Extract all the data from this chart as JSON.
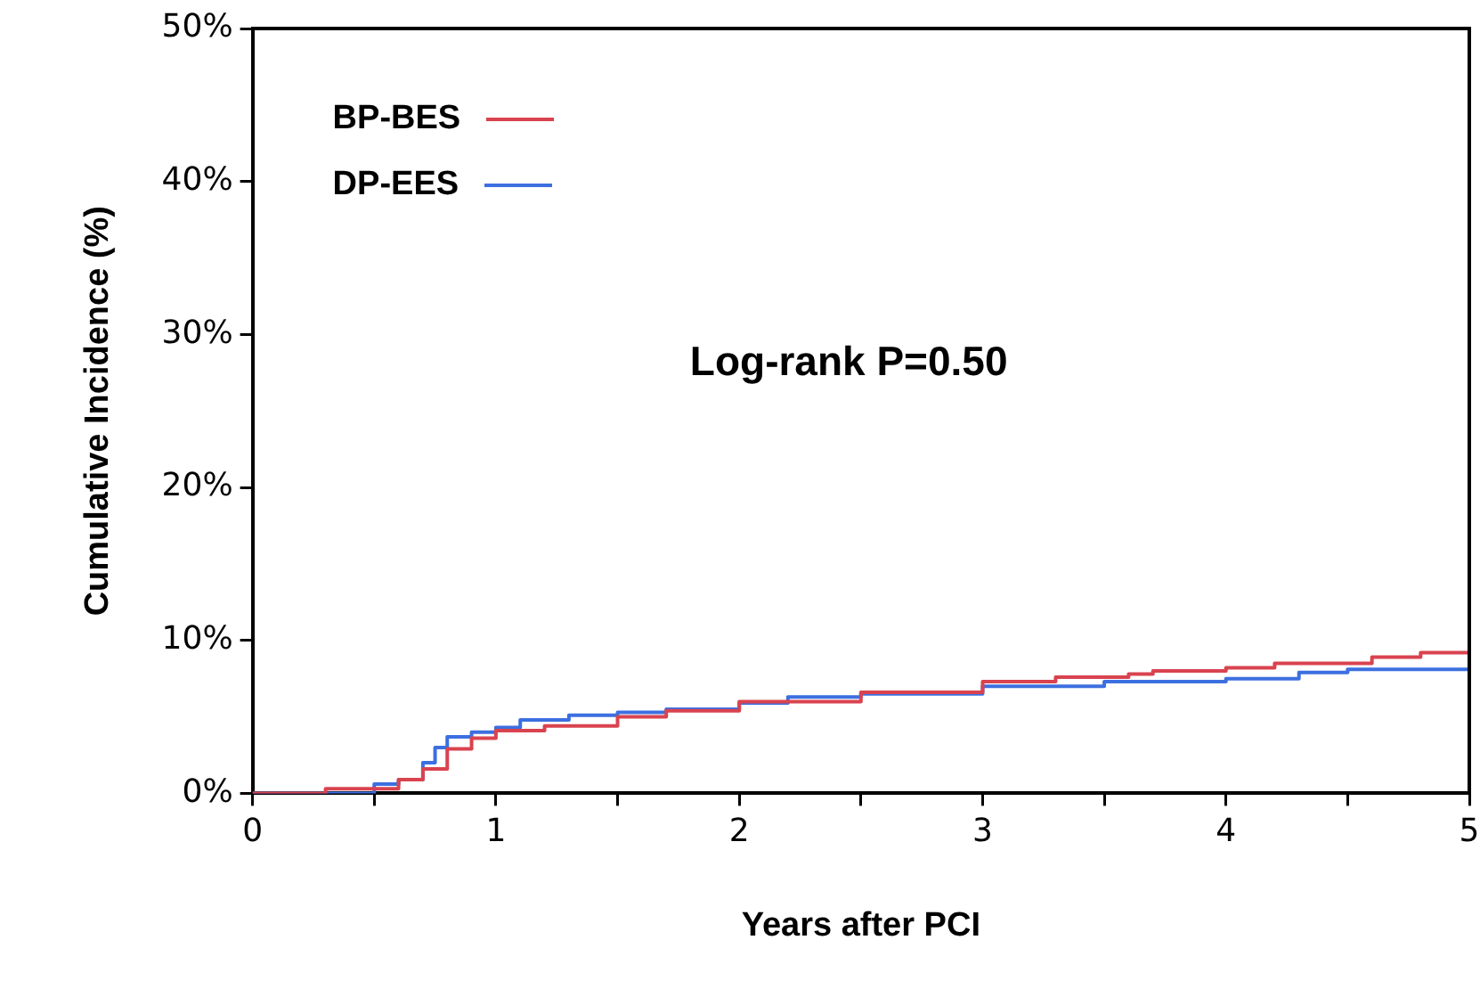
{
  "chart_data": {
    "type": "step",
    "xlabel": "Years after PCI",
    "ylabel": "Cumulative Incidence (%)",
    "annotations": [
      "Log-rank P=0.50"
    ],
    "xlim": [
      0,
      5
    ],
    "xticks": [
      0,
      {
        "value": 0.5,
        "label": null
      },
      1,
      {
        "value": 1.5,
        "label": null
      },
      2,
      {
        "value": 2.5,
        "label": null
      },
      3,
      {
        "value": 3.5,
        "label": null
      },
      4,
      {
        "value": 4.5,
        "label": null
      },
      5
    ],
    "ylim": [
      0,
      50
    ],
    "yticks": [
      {
        "value": 0,
        "label": "0%"
      },
      {
        "value": 10,
        "label": "10%"
      },
      {
        "value": 20,
        "label": "20%"
      },
      {
        "value": 30,
        "label": "30%"
      },
      {
        "value": 40,
        "label": "40%"
      },
      {
        "value": 50,
        "label": "50%"
      }
    ],
    "grid": false,
    "legend": "top left",
    "marker": "none",
    "line_style": "solid",
    "series": [
      {
        "name": "BP-BES",
        "color": "#d9434f",
        "x": [
          0,
          0.3,
          0.6,
          0.7,
          0.8,
          0.9,
          1.0,
          1.2,
          1.5,
          1.7,
          2.0,
          2.5,
          3.0,
          3.3,
          3.6,
          3.7,
          4.0,
          4.2,
          4.6,
          4.8,
          5.0
        ],
        "values": [
          0,
          0.3,
          0.9,
          1.6,
          2.9,
          3.6,
          4.1,
          4.4,
          5.0,
          5.4,
          6.0,
          6.6,
          7.3,
          7.6,
          7.8,
          8.0,
          8.2,
          8.5,
          8.9,
          9.2,
          9.3
        ]
      },
      {
        "name": "DP-EES",
        "color": "#3c6fe0",
        "x": [
          0,
          0.5,
          0.6,
          0.7,
          0.75,
          0.8,
          0.9,
          1.0,
          1.1,
          1.3,
          1.5,
          1.7,
          2.0,
          2.2,
          2.5,
          3.0,
          3.5,
          4.0,
          4.3,
          4.5,
          5.0
        ],
        "values": [
          0,
          0.6,
          0.9,
          2.0,
          3.0,
          3.7,
          4.0,
          4.3,
          4.8,
          5.1,
          5.3,
          5.5,
          5.9,
          6.3,
          6.5,
          7.0,
          7.3,
          7.5,
          7.9,
          8.1,
          8.5
        ]
      }
    ]
  }
}
